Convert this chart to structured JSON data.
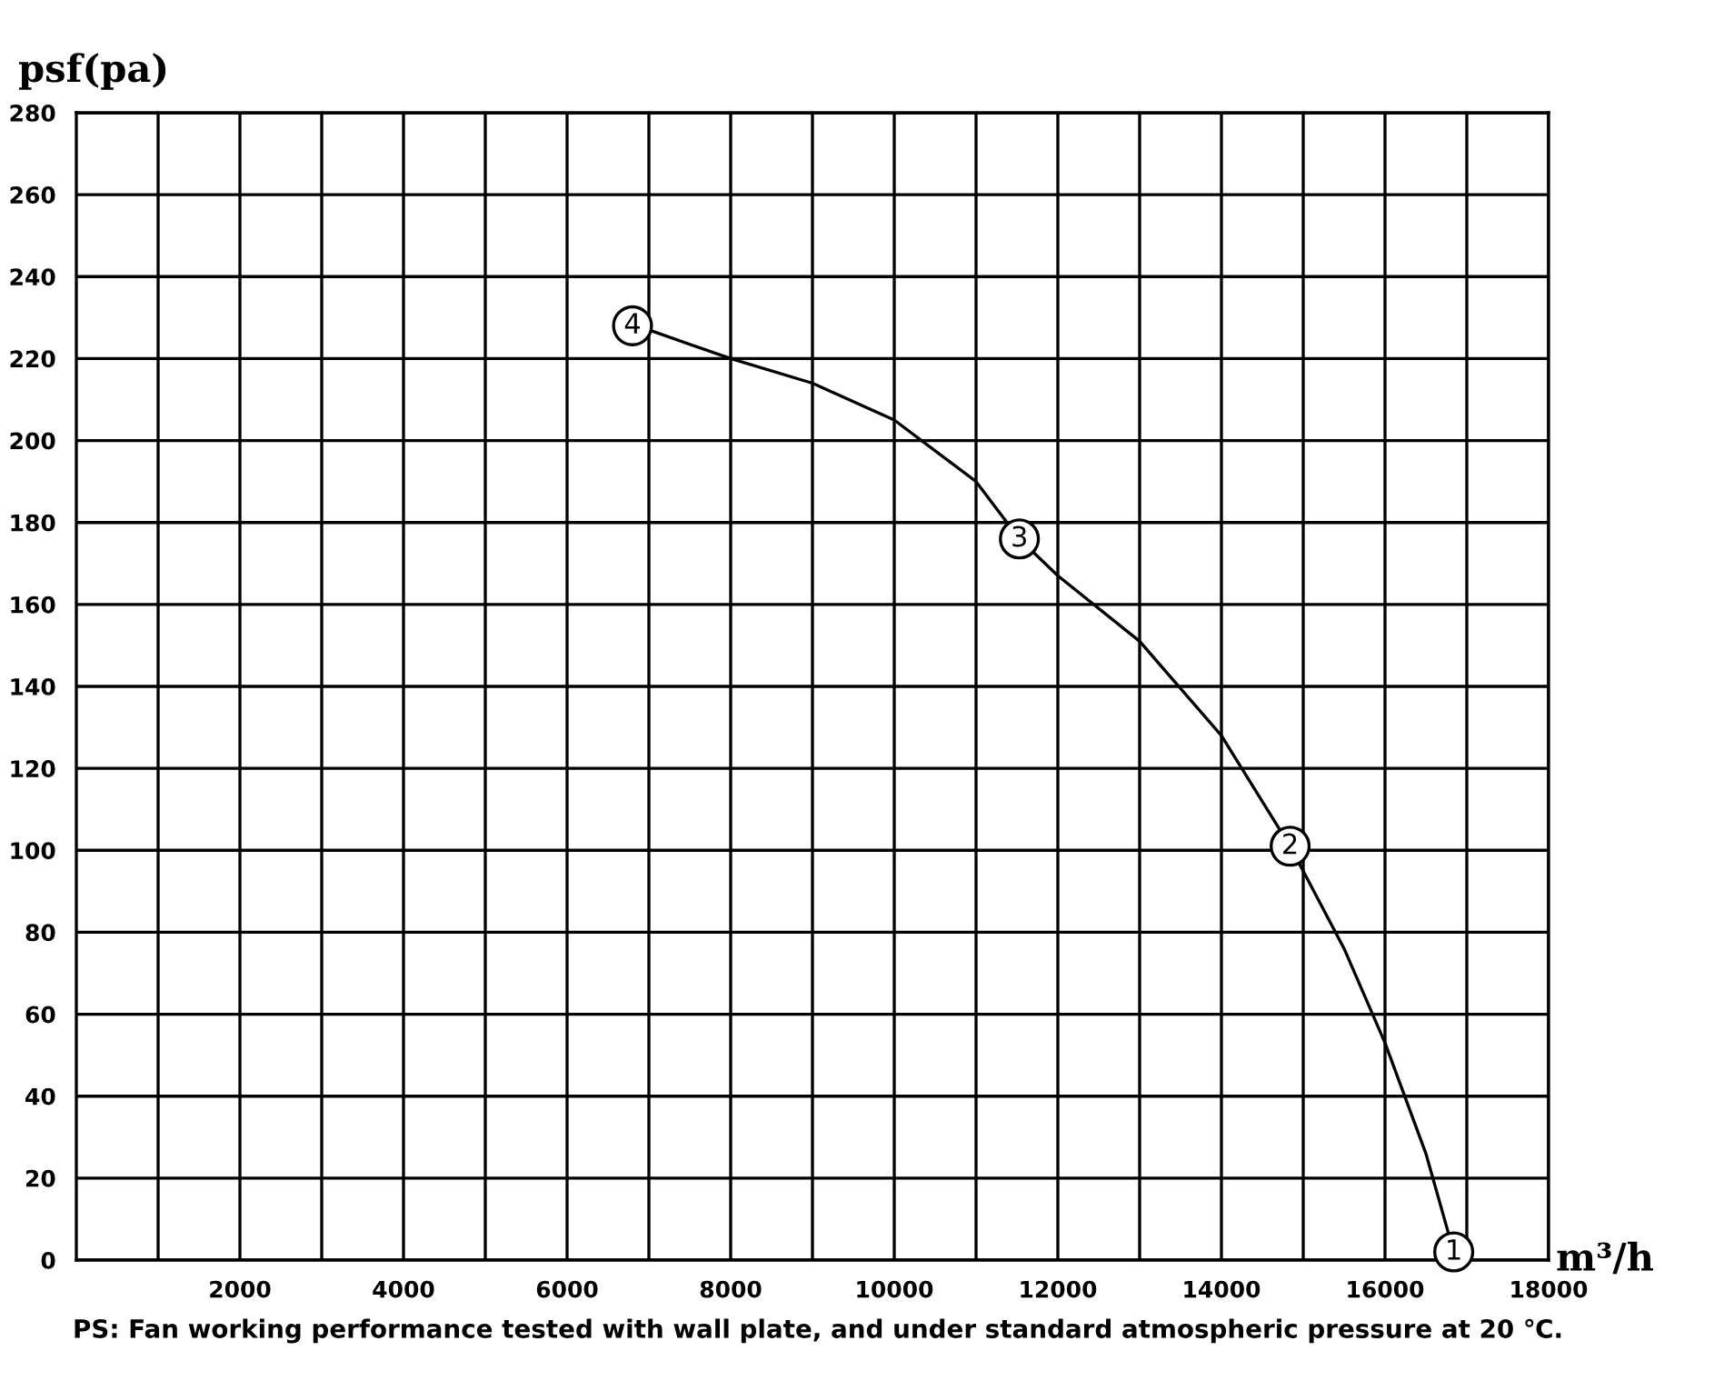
{
  "chart_data": {
    "type": "line",
    "xlabel": "m³/h",
    "ylabel": "psf(pa)",
    "x": [
      6800,
      7000,
      8000,
      9000,
      10000,
      11000,
      11530,
      12000,
      13000,
      14000,
      14840,
      15500,
      16000,
      16500,
      16840
    ],
    "series": [
      {
        "color": "#000000",
        "values": [
          228,
          227,
          220,
          214,
          205,
          190,
          176,
          167,
          151,
          128,
          101,
          76,
          53,
          26,
          2
        ]
      }
    ],
    "xlim": [
      0,
      18000
    ],
    "xticks": [
      {
        "value": 1000,
        "label": null
      },
      2000,
      {
        "value": 3000,
        "label": null
      },
      4000,
      {
        "value": 5000,
        "label": null
      },
      6000,
      {
        "value": 7000,
        "label": null
      },
      8000,
      {
        "value": 9000,
        "label": null
      },
      10000,
      {
        "value": 11000,
        "label": null
      },
      12000,
      {
        "value": 13000,
        "label": null
      },
      14000,
      {
        "value": 15000,
        "label": null
      },
      16000,
      {
        "value": 17000,
        "label": null
      },
      18000
    ],
    "ylim": [
      0,
      280
    ],
    "yticks": [
      0,
      20,
      40,
      60,
      80,
      100,
      120,
      140,
      160,
      180,
      200,
      220,
      240,
      260,
      280
    ],
    "grid": true,
    "marker": "none",
    "line_style": "solid",
    "annotations": [
      {
        "text": "1",
        "x": 16840,
        "y": 2
      },
      {
        "text": "2",
        "x": 14840,
        "y": 101
      },
      {
        "text": "3",
        "x": 11530,
        "y": 176
      },
      {
        "text": "4",
        "x": 6800,
        "y": 228
      },
      "PS: Fan working performance tested with wall plate, and under standard atmospheric pressure at 20 ℃."
    ]
  }
}
